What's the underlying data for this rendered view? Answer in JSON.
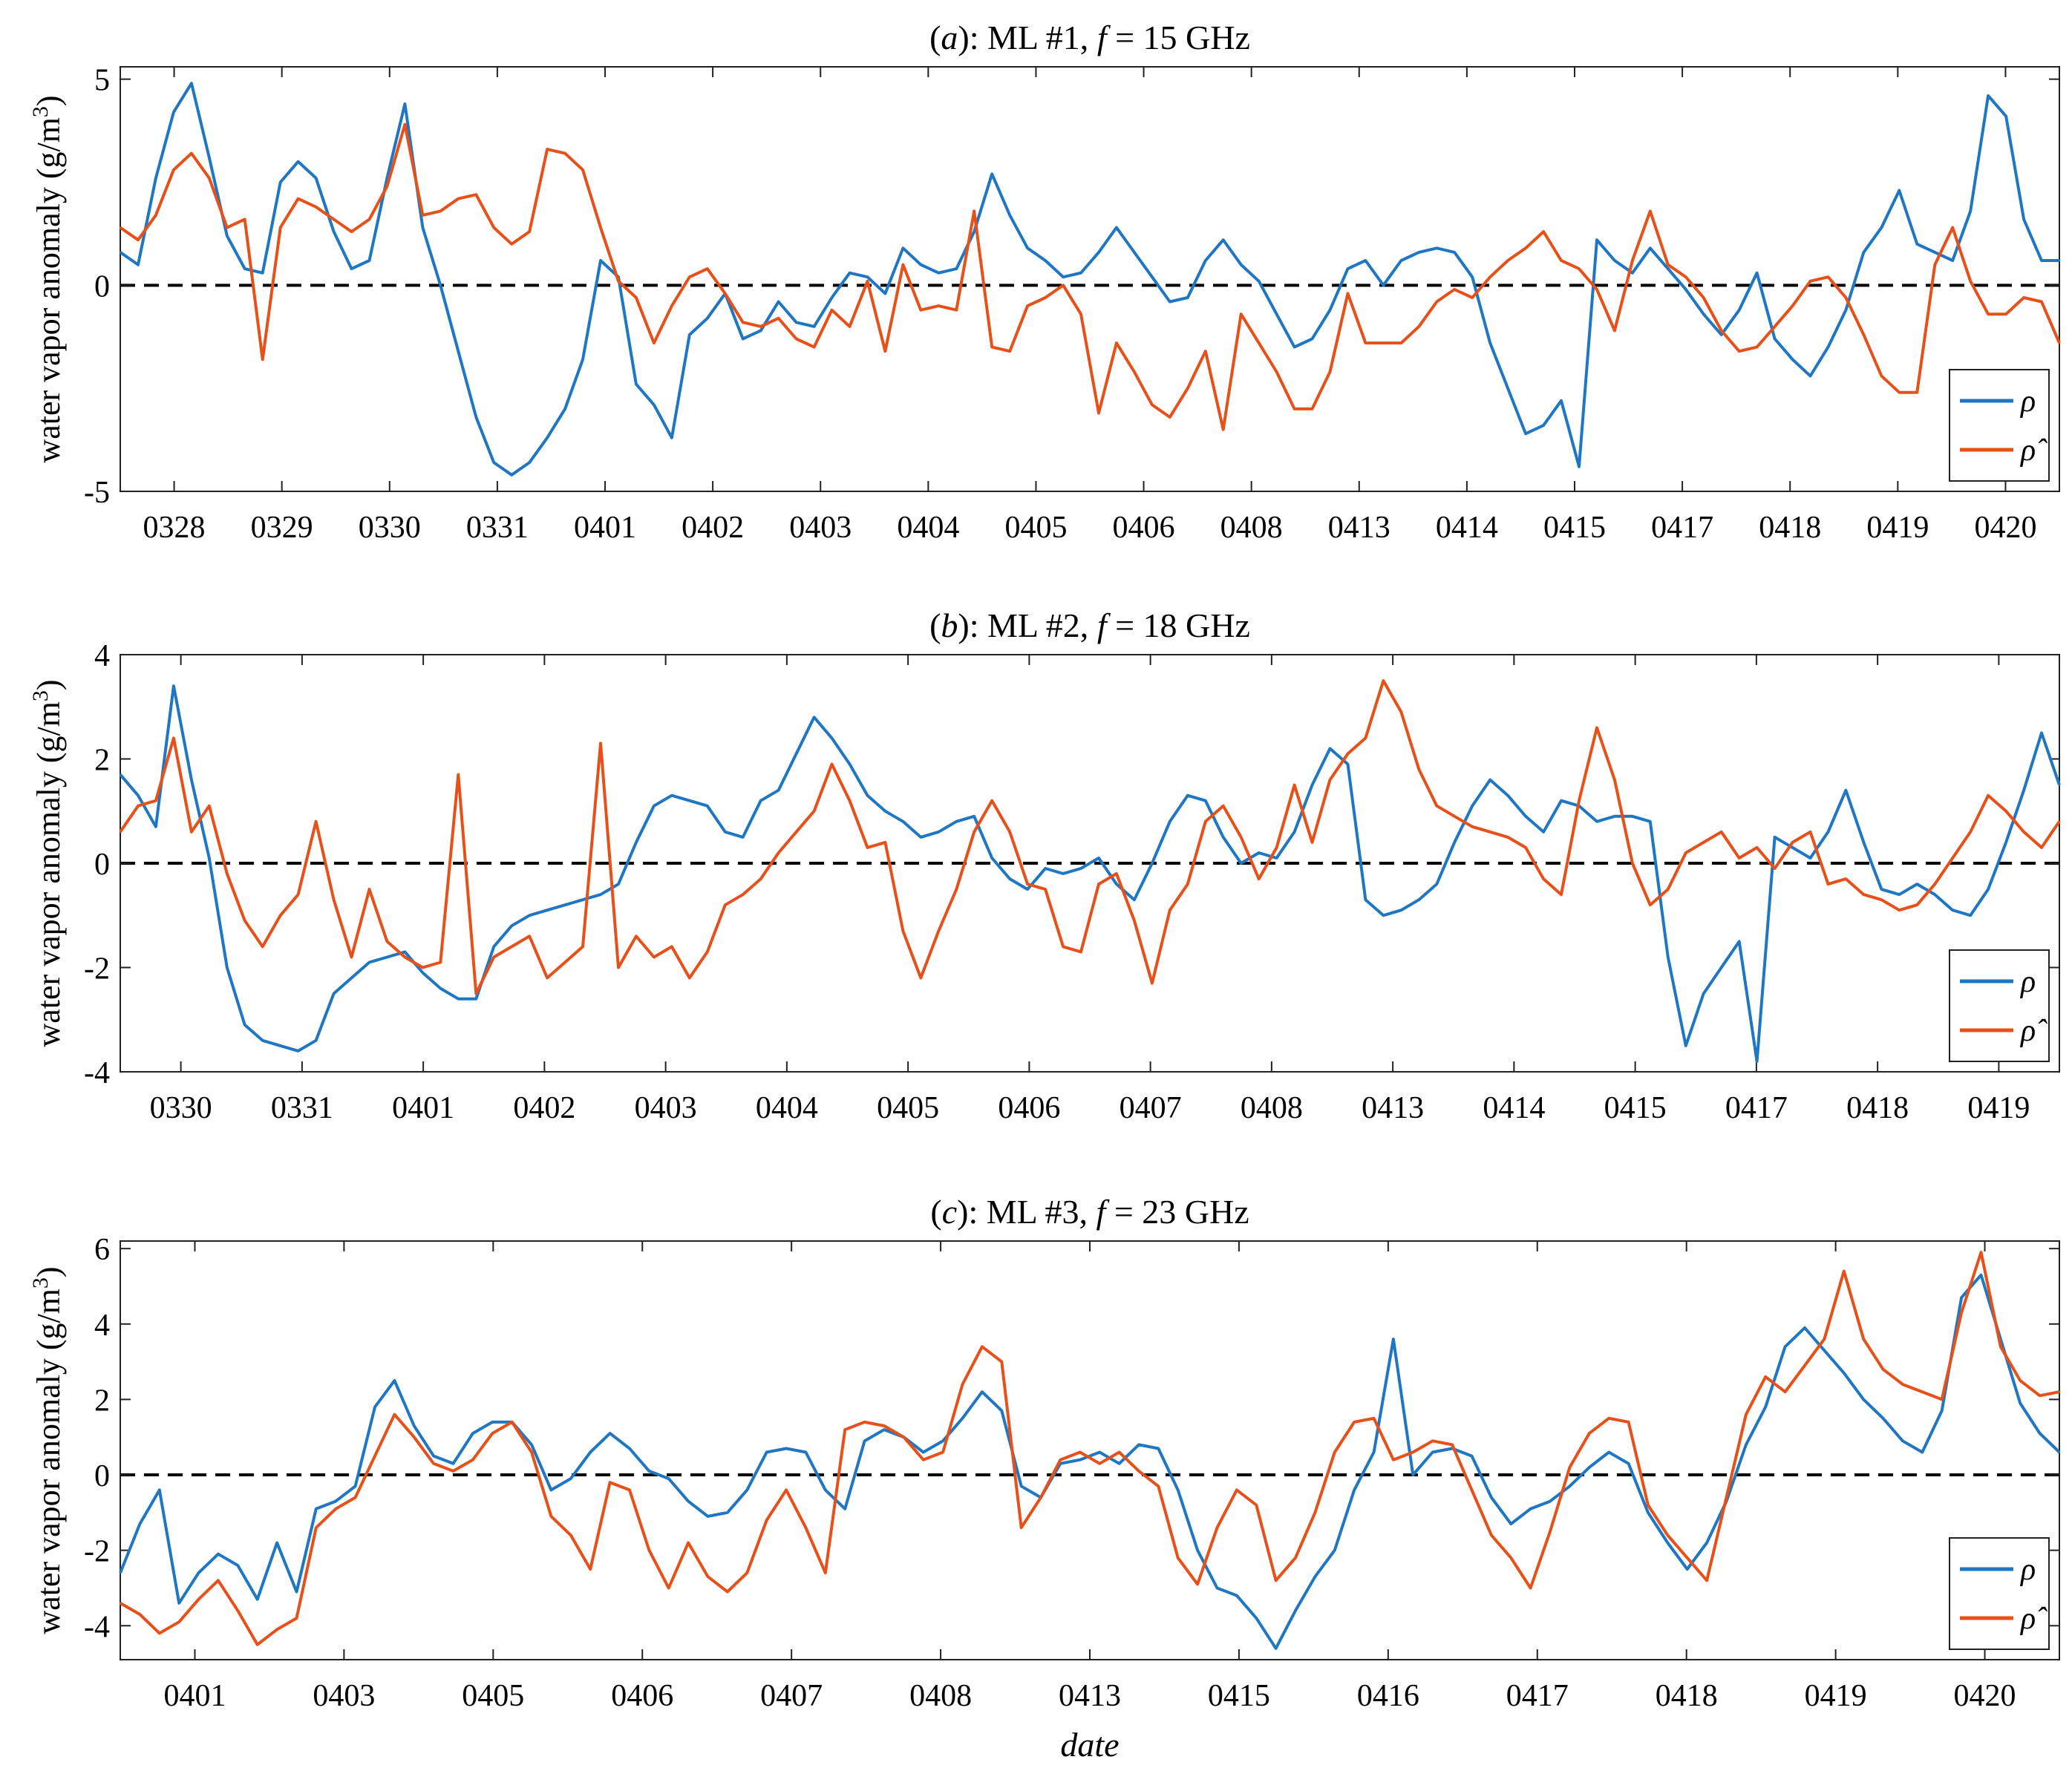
{
  "colors": {
    "rho": "#1f77c4",
    "rho_hat": "#e8501a",
    "zero_line": "#000000",
    "axes": "#222222",
    "background": "#ffffff"
  },
  "chart_data": [
    {
      "type": "line",
      "title_prefix": "(",
      "title_letter": "a",
      "title_mid": "): ML #1, ",
      "title_var": "f",
      "title_suffix": " = 15 GHz",
      "ylabel": "water vapor anomaly  (g/m",
      "ylabel_sup": "3",
      "ylabel_end": ")",
      "xlabel": "",
      "ylim": [
        -5,
        5.3
      ],
      "yticks": [
        -5,
        0,
        5
      ],
      "ytick_labels": [
        "-5",
        "0",
        "5"
      ],
      "x_labels": [
        "0328",
        "0329",
        "0330",
        "0331",
        "0401",
        "0402",
        "0403",
        "0404",
        "0405",
        "0406",
        "0408",
        "0413",
        "0414",
        "0415",
        "0417",
        "0418",
        "0419",
        "0420"
      ],
      "legend": {
        "placement": "bottom-right",
        "entries": [
          "ρ",
          "ρ̂"
        ]
      },
      "zero_line": true,
      "series": [
        {
          "name": "ρ",
          "color_key": "rho",
          "values": [
            0.8,
            0.5,
            2.6,
            4.2,
            4.9,
            3.1,
            1.2,
            0.4,
            0.3,
            2.5,
            3.0,
            2.6,
            1.3,
            0.4,
            0.6,
            2.6,
            4.4,
            1.4,
            0.0,
            -1.6,
            -3.2,
            -4.3,
            -4.6,
            -4.3,
            -3.7,
            -3.0,
            -1.8,
            0.6,
            0.2,
            -2.4,
            -2.9,
            -3.7,
            -1.2,
            -0.8,
            -0.2,
            -1.3,
            -1.1,
            -0.4,
            -0.9,
            -1.0,
            -0.3,
            0.3,
            0.2,
            -0.2,
            0.9,
            0.5,
            0.3,
            0.4,
            1.3,
            2.7,
            1.7,
            0.9,
            0.6,
            0.2,
            0.3,
            0.8,
            1.4,
            0.8,
            0.2,
            -0.4,
            -0.3,
            0.6,
            1.1,
            0.5,
            0.1,
            -0.7,
            -1.5,
            -1.3,
            -0.6,
            0.4,
            0.6,
            0.0,
            0.6,
            0.8,
            0.9,
            0.8,
            0.2,
            -1.4,
            -2.5,
            -3.6,
            -3.4,
            -2.8,
            -4.4,
            1.1,
            0.6,
            0.3,
            0.9,
            0.4,
            -0.1,
            -0.7,
            -1.2,
            -0.6,
            0.3,
            -1.3,
            -1.8,
            -2.2,
            -1.5,
            -0.6,
            0.8,
            1.4,
            2.3,
            1.0,
            0.8,
            0.6,
            1.8,
            4.6,
            4.1,
            1.6,
            0.6,
            0.6
          ]
        },
        {
          "name": "ρ̂",
          "color_key": "rho_hat",
          "values": [
            1.4,
            1.1,
            1.7,
            2.8,
            3.2,
            2.6,
            1.4,
            1.6,
            -1.8,
            1.4,
            2.1,
            1.9,
            1.6,
            1.3,
            1.6,
            2.4,
            3.9,
            1.7,
            1.8,
            2.1,
            2.2,
            1.4,
            1.0,
            1.3,
            3.3,
            3.2,
            2.8,
            1.4,
            0.1,
            -0.3,
            -1.4,
            -0.5,
            0.2,
            0.4,
            -0.2,
            -0.9,
            -1.0,
            -0.8,
            -1.3,
            -1.5,
            -0.6,
            -1.0,
            0.1,
            -1.6,
            0.5,
            -0.6,
            -0.5,
            -0.6,
            1.8,
            -1.5,
            -1.6,
            -0.5,
            -0.3,
            0.0,
            -0.7,
            -3.1,
            -1.4,
            -2.1,
            -2.9,
            -3.2,
            -2.5,
            -1.6,
            -3.5,
            -0.7,
            -1.4,
            -2.1,
            -3.0,
            -3.0,
            -2.1,
            -0.2,
            -1.4,
            -1.4,
            -1.4,
            -1.0,
            -0.4,
            -0.1,
            -0.3,
            0.2,
            0.6,
            0.9,
            1.3,
            0.6,
            0.4,
            -0.1,
            -1.1,
            0.6,
            1.8,
            0.5,
            0.2,
            -0.3,
            -1.1,
            -1.6,
            -1.5,
            -1.0,
            -0.5,
            0.1,
            0.2,
            -0.3,
            -1.2,
            -2.2,
            -2.6,
            -2.6,
            0.5,
            1.4,
            0.1,
            -0.7,
            -0.7,
            -0.3,
            -0.4,
            -1.4
          ]
        }
      ]
    },
    {
      "type": "line",
      "title_prefix": "(",
      "title_letter": "b",
      "title_mid": "): ML #2, ",
      "title_var": "f",
      "title_suffix": " = 18 GHz",
      "ylabel": "water vapor anomaly  (g/m",
      "ylabel_sup": "3",
      "ylabel_end": ")",
      "xlabel": "",
      "ylim": [
        -4,
        4
      ],
      "yticks": [
        -4,
        -2,
        0,
        2,
        4
      ],
      "ytick_labels": [
        "-4",
        "-2",
        "0",
        "2",
        "4"
      ],
      "x_labels": [
        "0330",
        "0331",
        "0401",
        "0402",
        "0403",
        "0404",
        "0405",
        "0406",
        "0407",
        "0408",
        "0413",
        "0414",
        "0415",
        "0417",
        "0418",
        "0419"
      ],
      "legend": {
        "placement": "bottom-right",
        "entries": [
          "ρ",
          "ρ̂"
        ]
      },
      "zero_line": true,
      "series": [
        {
          "name": "ρ",
          "color_key": "rho",
          "values": [
            1.7,
            1.3,
            0.7,
            3.4,
            1.6,
            0.1,
            -2.0,
            -3.1,
            -3.4,
            -3.5,
            -3.6,
            -3.4,
            -2.5,
            -2.2,
            -1.9,
            -1.8,
            -1.7,
            -2.1,
            -2.4,
            -2.6,
            -2.6,
            -1.6,
            -1.2,
            -1.0,
            -0.9,
            -0.8,
            -0.7,
            -0.6,
            -0.4,
            0.4,
            1.1,
            1.3,
            1.2,
            1.1,
            0.6,
            0.5,
            1.2,
            1.4,
            2.1,
            2.8,
            2.4,
            1.9,
            1.3,
            1.0,
            0.8,
            0.5,
            0.6,
            0.8,
            0.9,
            0.1,
            -0.3,
            -0.5,
            -0.1,
            -0.2,
            -0.1,
            0.1,
            -0.4,
            -0.7,
            0.0,
            0.8,
            1.3,
            1.2,
            0.5,
            0.0,
            0.2,
            0.1,
            0.6,
            1.5,
            2.2,
            1.9,
            -0.7,
            -1.0,
            -0.9,
            -0.7,
            -0.4,
            0.4,
            1.1,
            1.6,
            1.3,
            0.9,
            0.6,
            1.2,
            1.1,
            0.8,
            0.9,
            0.9,
            0.8,
            -1.8,
            -3.5,
            -2.5,
            -2.0,
            -1.5,
            -3.8,
            0.5,
            0.3,
            0.1,
            0.6,
            1.4,
            0.4,
            -0.5,
            -0.6,
            -0.4,
            -0.6,
            -0.9,
            -1.0,
            -0.5,
            0.4,
            1.4,
            2.5,
            1.5
          ]
        },
        {
          "name": "ρ̂",
          "color_key": "rho_hat",
          "values": [
            0.6,
            1.1,
            1.2,
            2.4,
            0.6,
            1.1,
            -0.2,
            -1.1,
            -1.6,
            -1.0,
            -0.6,
            0.8,
            -0.7,
            -1.8,
            -0.5,
            -1.5,
            -1.8,
            -2.0,
            -1.9,
            1.7,
            -2.5,
            -1.8,
            -1.6,
            -1.4,
            -2.2,
            -1.9,
            -1.6,
            2.3,
            -2.0,
            -1.4,
            -1.8,
            -1.6,
            -2.2,
            -1.7,
            -0.8,
            -0.6,
            -0.3,
            0.2,
            0.6,
            1.0,
            1.9,
            1.2,
            0.3,
            0.4,
            -1.3,
            -2.2,
            -1.3,
            -0.5,
            0.6,
            1.2,
            0.6,
            -0.4,
            -0.5,
            -1.6,
            -1.7,
            -0.4,
            -0.2,
            -1.1,
            -2.3,
            -0.9,
            -0.4,
            0.8,
            1.1,
            0.5,
            -0.3,
            0.3,
            1.5,
            0.4,
            1.6,
            2.1,
            2.4,
            3.5,
            2.9,
            1.8,
            1.1,
            0.9,
            0.7,
            0.6,
            0.5,
            0.3,
            -0.3,
            -0.6,
            1.2,
            2.6,
            1.6,
            0.0,
            -0.8,
            -0.5,
            0.2,
            0.4,
            0.6,
            0.1,
            0.3,
            -0.1,
            0.4,
            0.6,
            -0.4,
            -0.3,
            -0.6,
            -0.7,
            -0.9,
            -0.8,
            -0.4,
            0.1,
            0.6,
            1.3,
            1.0,
            0.6,
            0.3,
            0.8
          ]
        }
      ]
    },
    {
      "type": "line",
      "title_prefix": "(",
      "title_letter": "c",
      "title_mid": "): ML #3, ",
      "title_var": "f",
      "title_suffix": " = 23 GHz",
      "ylabel": "water vapor anomaly  (g/m",
      "ylabel_sup": "3",
      "ylabel_end": ")",
      "xlabel": "date",
      "ylim": [
        -4.9,
        6.2
      ],
      "yticks": [
        -4,
        -2,
        0,
        2,
        4,
        6
      ],
      "ytick_labels": [
        "-4",
        "-2",
        "0",
        "2",
        "4",
        "6"
      ],
      "x_labels": [
        "0401",
        "0403",
        "0405",
        "0406",
        "0407",
        "0408",
        "0413",
        "0415",
        "0416",
        "0417",
        "0418",
        "0419",
        "0420"
      ],
      "legend": {
        "placement": "bottom-right",
        "entries": [
          "ρ",
          "ρ̂"
        ]
      },
      "zero_line": true,
      "series": [
        {
          "name": "ρ",
          "color_key": "rho",
          "values": [
            -2.6,
            -1.3,
            -0.4,
            -3.4,
            -2.6,
            -2.1,
            -2.4,
            -3.3,
            -1.8,
            -3.1,
            -0.9,
            -0.7,
            -0.3,
            1.8,
            2.5,
            1.3,
            0.5,
            0.3,
            1.1,
            1.4,
            1.4,
            0.8,
            -0.4,
            -0.1,
            0.6,
            1.1,
            0.7,
            0.1,
            -0.1,
            -0.7,
            -1.1,
            -1.0,
            -0.4,
            0.6,
            0.7,
            0.6,
            -0.4,
            -0.9,
            0.9,
            1.2,
            1.0,
            0.6,
            0.9,
            1.5,
            2.2,
            1.7,
            -0.3,
            -0.6,
            0.3,
            0.4,
            0.6,
            0.3,
            0.8,
            0.7,
            -0.4,
            -2.0,
            -3.0,
            -3.2,
            -3.8,
            -4.6,
            -3.6,
            -2.7,
            -2.0,
            -0.4,
            0.6,
            3.6,
            0.0,
            0.6,
            0.7,
            0.5,
            -0.6,
            -1.3,
            -0.9,
            -0.7,
            -0.3,
            0.2,
            0.6,
            0.3,
            -1.0,
            -1.8,
            -2.5,
            -1.8,
            -0.7,
            0.8,
            1.8,
            3.4,
            3.9,
            3.3,
            2.7,
            2.0,
            1.5,
            0.9,
            0.6,
            1.7,
            4.7,
            5.3,
            3.6,
            1.9,
            1.1,
            0.6
          ]
        },
        {
          "name": "ρ̂",
          "color_key": "rho_hat",
          "values": [
            -3.4,
            -3.7,
            -4.2,
            -3.9,
            -3.3,
            -2.8,
            -3.6,
            -4.5,
            -4.1,
            -3.8,
            -1.4,
            -0.9,
            -0.6,
            0.5,
            1.6,
            1.0,
            0.3,
            0.1,
            0.4,
            1.1,
            1.4,
            0.6,
            -1.1,
            -1.6,
            -2.5,
            -0.2,
            -0.4,
            -2.0,
            -3.0,
            -1.8,
            -2.7,
            -3.1,
            -2.6,
            -1.2,
            -0.4,
            -1.4,
            -2.6,
            1.2,
            1.4,
            1.3,
            1.0,
            0.4,
            0.6,
            2.4,
            3.4,
            3.0,
            -1.4,
            -0.6,
            0.4,
            0.6,
            0.3,
            0.6,
            0.1,
            -0.3,
            -2.2,
            -2.9,
            -1.4,
            -0.4,
            -0.8,
            -2.8,
            -2.2,
            -1.0,
            0.6,
            1.4,
            1.5,
            0.4,
            0.6,
            0.9,
            0.8,
            -0.4,
            -1.6,
            -2.2,
            -3.0,
            -1.5,
            0.2,
            1.1,
            1.5,
            1.4,
            -0.8,
            -1.6,
            -2.2,
            -2.8,
            -0.6,
            1.6,
            2.6,
            2.2,
            2.9,
            3.6,
            5.4,
            3.6,
            2.8,
            2.4,
            2.2,
            2.0,
            4.3,
            5.9,
            3.4,
            2.5,
            2.1,
            2.2
          ]
        }
      ]
    }
  ]
}
